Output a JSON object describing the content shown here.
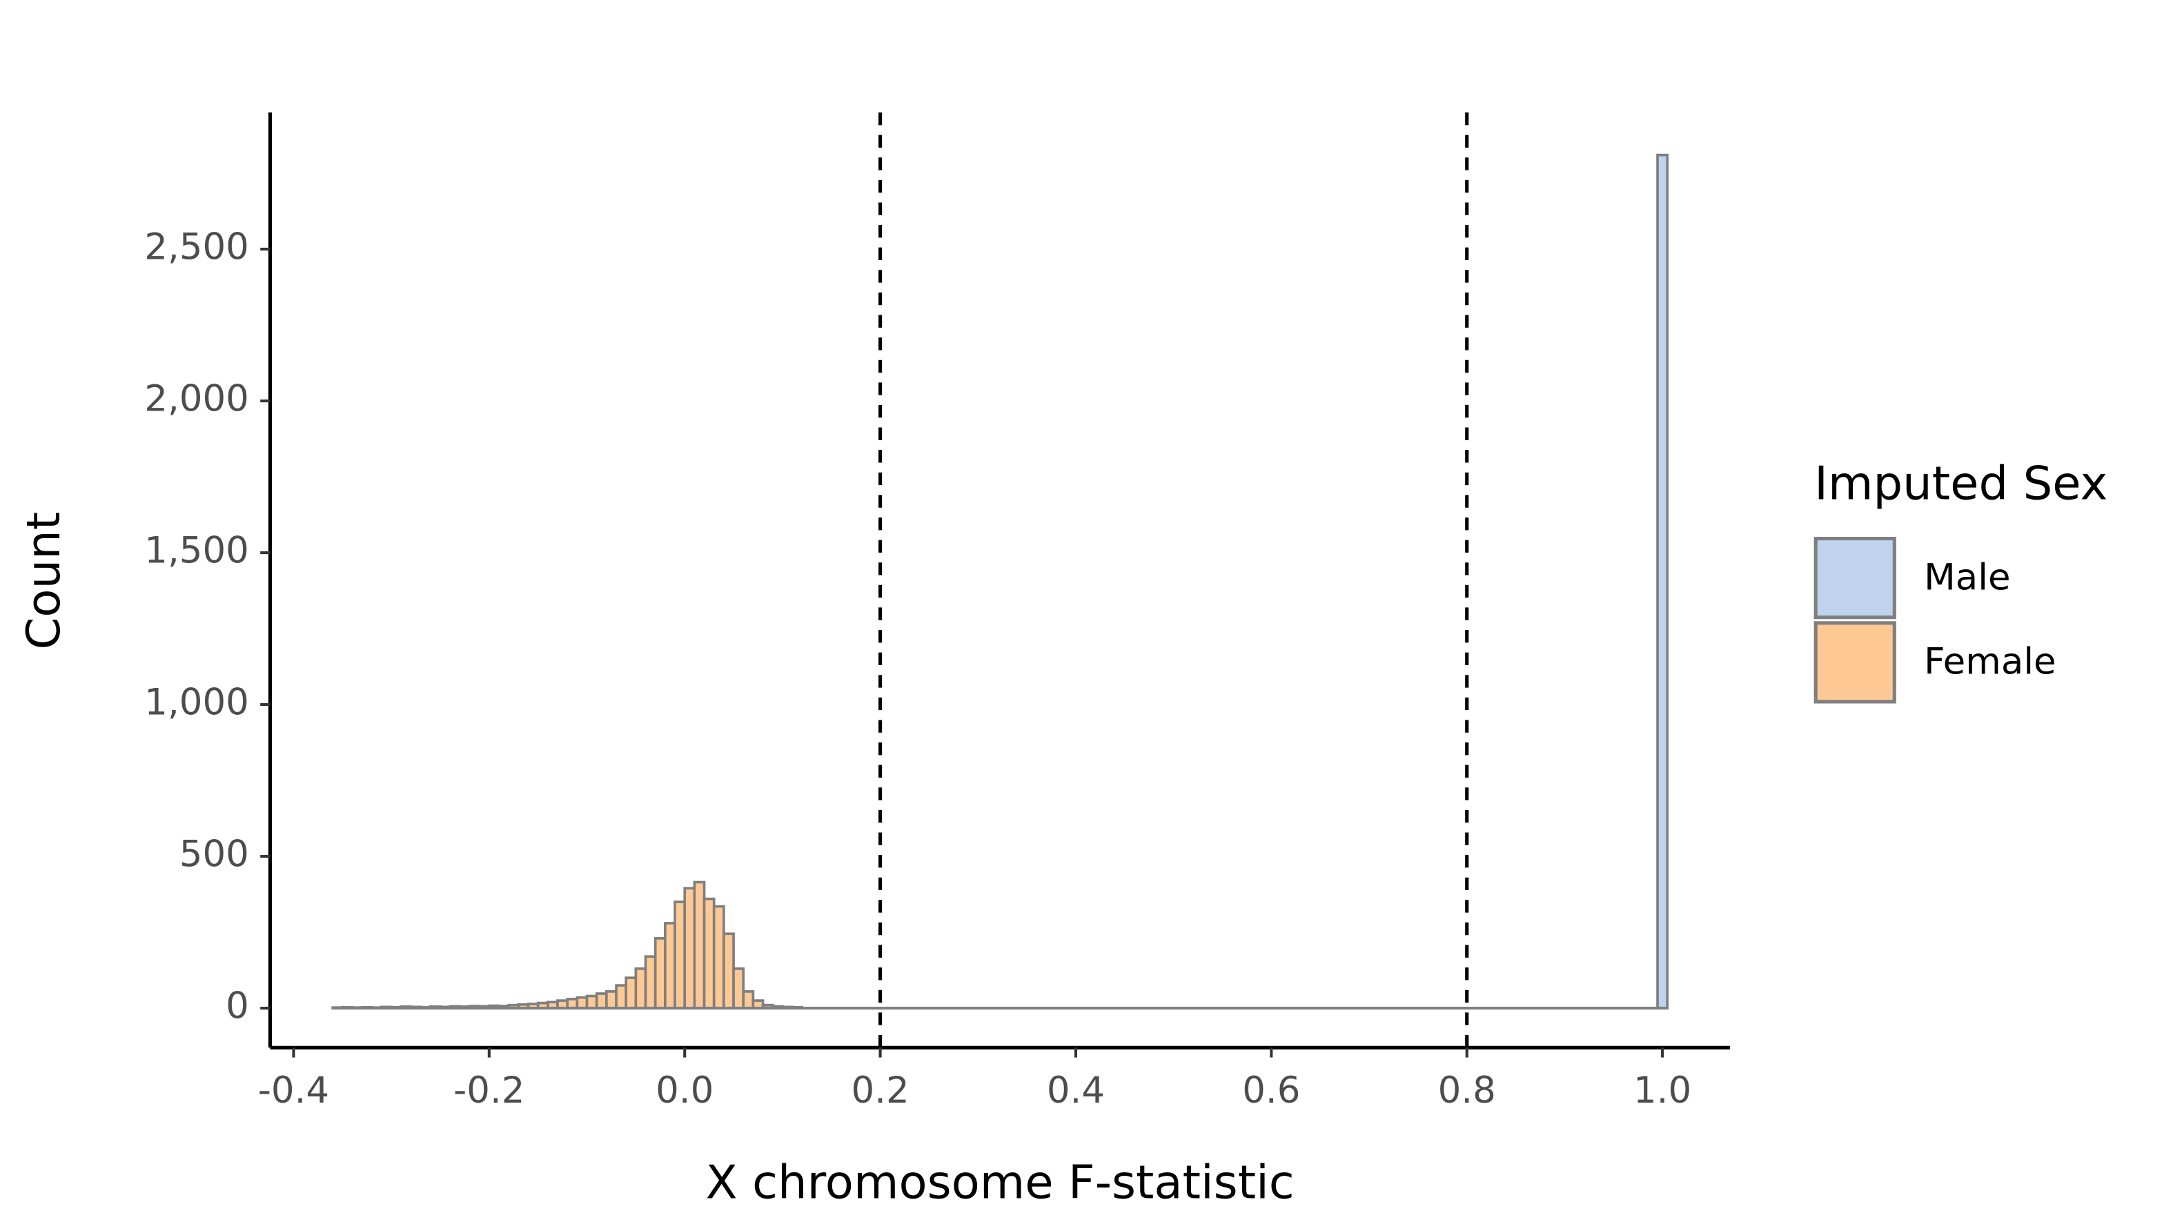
{
  "chart_data": {
    "type": "histogram",
    "x_label": "X chromosome F-statistic",
    "y_label": "Count",
    "legend_title": "Imputed Sex",
    "legend_position": "right",
    "edge_color": "#7f7f7f",
    "series": [
      {
        "name": "Male",
        "color": "#bfd3ee",
        "bins": [
          0.995,
          1.005
        ],
        "values": [
          2810
        ]
      },
      {
        "name": "Female",
        "color": "#fec994",
        "bins": [
          -0.36,
          -0.35,
          -0.34,
          -0.33,
          -0.32,
          -0.31,
          -0.3,
          -0.29,
          -0.28,
          -0.27,
          -0.26,
          -0.25,
          -0.24,
          -0.23,
          -0.22,
          -0.21,
          -0.2,
          -0.19,
          -0.18,
          -0.17,
          -0.16,
          -0.15,
          -0.14,
          -0.13,
          -0.12,
          -0.11,
          -0.1,
          -0.09,
          -0.08,
          -0.07,
          -0.06,
          -0.05,
          -0.04,
          -0.03,
          -0.02,
          -0.01,
          0.0,
          0.01,
          0.02,
          0.03,
          0.04,
          0.05,
          0.06,
          0.07,
          0.08,
          0.09,
          0.1,
          0.11,
          0.12
        ],
        "values": [
          2,
          3,
          2,
          3,
          2,
          4,
          3,
          5,
          4,
          3,
          5,
          4,
          6,
          5,
          7,
          6,
          8,
          7,
          10,
          12,
          14,
          17,
          20,
          25,
          30,
          35,
          40,
          48,
          55,
          75,
          100,
          130,
          170,
          230,
          280,
          350,
          395,
          415,
          360,
          335,
          245,
          130,
          55,
          25,
          10,
          6,
          4,
          3
        ]
      }
    ],
    "vlines": [
      0.2,
      0.8
    ],
    "xlim": [
      -0.424,
      1.069
    ],
    "ylim": [
      -130,
      2950
    ],
    "xticks": [
      -0.4,
      -0.2,
      {
        "value": 0,
        "label": "0.0"
      },
      0.2,
      0.4,
      0.6,
      0.8,
      {
        "value": 1,
        "label": "1.0"
      }
    ],
    "yticks": [
      0,
      500,
      {
        "value": 1000,
        "label": "1,000"
      },
      {
        "value": 1500,
        "label": "1,500"
      },
      {
        "value": 2000,
        "label": "2,000"
      },
      {
        "value": 2500,
        "label": "2,500"
      }
    ]
  }
}
